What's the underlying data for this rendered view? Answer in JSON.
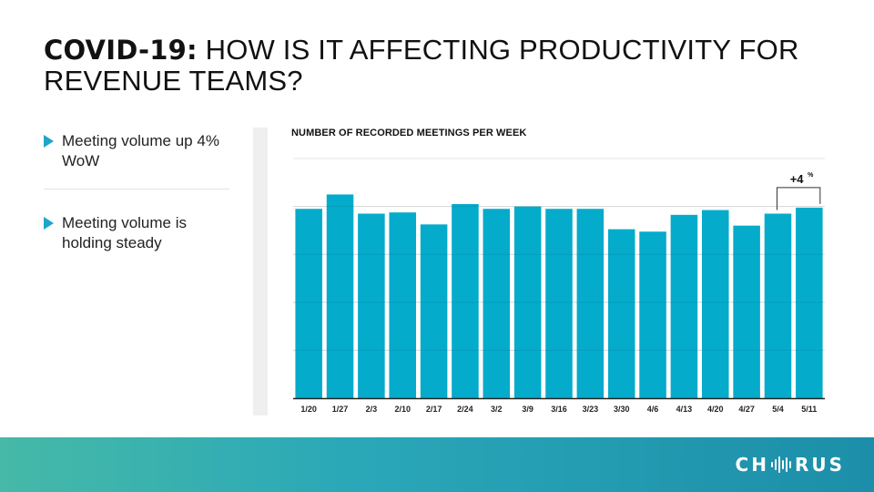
{
  "header": {
    "title_bold": "COVID-19:",
    "title_rest": " HOW IS IT AFFECTING PRODUCTIVITY FOR REVENUE TEAMS?"
  },
  "bullets": [
    {
      "text": "Meeting volume up 4% WoW"
    },
    {
      "text": "Meeting volume is holding steady"
    }
  ],
  "chart_data": {
    "type": "bar",
    "title": "NUMBER OF RECORDED MEETINGS PER WEEK",
    "categories": [
      "1/20",
      "1/27",
      "2/3",
      "2/10",
      "2/17",
      "2/24",
      "3/2",
      "3/9",
      "3/16",
      "3/23",
      "3/30",
      "4/6",
      "4/13",
      "4/20",
      "4/27",
      "5/4",
      "5/11"
    ],
    "values": [
      79,
      85,
      77,
      77.5,
      72.5,
      81,
      79,
      80,
      79,
      79,
      70.5,
      69.5,
      76.5,
      78.5,
      72,
      77,
      79.5
    ],
    "ylim": [
      0,
      100
    ],
    "grid": true,
    "bar_color": "#05abcb",
    "annotation": {
      "text": "+4",
      "superscript": "%",
      "from_category": "5/4",
      "to_category": "5/11"
    }
  },
  "brand": {
    "logo_left": "CH",
    "logo_right": "RUS"
  },
  "colors": {
    "accent": "#1ea6c8",
    "bar": "#05abcb"
  }
}
